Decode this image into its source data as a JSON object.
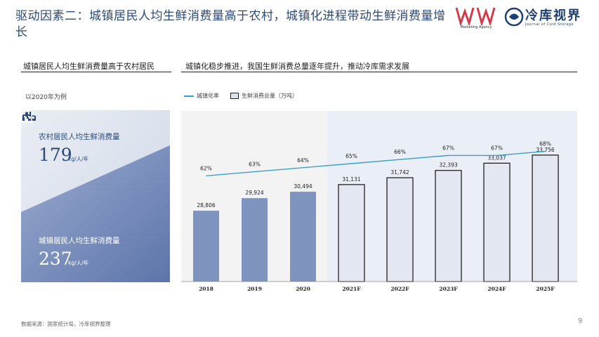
{
  "title": "驱动因素二：城镇居民人均生鲜消费量高于农村，城镇化进程带动生鲜消费量增长",
  "logos": {
    "ww_sub": "Marketing Agency",
    "cs_text": "冷库视界",
    "cs_sub": "Journal of Cold Storage"
  },
  "left_section": {
    "heading": "城镇居民人均生鲜消费量高于农村居民",
    "example_label": "以2020年为例",
    "rural": {
      "label": "农村居民人均生鲜消费量",
      "value": "179",
      "unit": "kg/人/年",
      "icon": "house-icon"
    },
    "urban": {
      "label": "城镇居民人均生鲜消费量",
      "value": "237",
      "unit": "kg/人/年",
      "icon": "building-icon"
    },
    "colors": {
      "light": "#dfe4ee",
      "dark": "#6f86b8"
    }
  },
  "right_section": {
    "heading": "城镇化稳步推进，我国生鲜消费总量逐年提升，推动冷库需求发展"
  },
  "chart_data": {
    "type": "bar",
    "categories": [
      "2018",
      "2019",
      "2020",
      "2021F",
      "2022F",
      "2023F",
      "2024F",
      "2025F"
    ],
    "series": [
      {
        "name": "生鲜消费总量（万吨）",
        "type": "bar",
        "values": [
          28806,
          29924,
          30494,
          31131,
          31742,
          32393,
          33037,
          33756
        ],
        "labels": [
          "28,806",
          "29,924",
          "30,494",
          "31,131",
          "31,742",
          "32,393",
          "33,037",
          "33,756"
        ]
      },
      {
        "name": "城镇化率",
        "type": "line",
        "values": [
          62,
          63,
          64,
          65,
          66,
          67,
          67,
          68
        ],
        "labels": [
          "62%",
          "63%",
          "64%",
          "65%",
          "66%",
          "67%",
          "67%",
          "68%"
        ]
      }
    ],
    "forecast_from_index": 3,
    "colors": {
      "actual_bar": "#7f93bf",
      "forecast_bar": "#e3e7f1",
      "forecast_bg": "#eaeef6",
      "actual_bg": "#f3f3f3",
      "line": "#3aa0c8"
    },
    "legend": {
      "line_label": "城镇化率",
      "bar_label": "生鲜消费总量（万吨）",
      "position": "top-left"
    }
  },
  "footer": {
    "source": "数据来源：国家统计局，冷库视界整理",
    "page": "9"
  }
}
